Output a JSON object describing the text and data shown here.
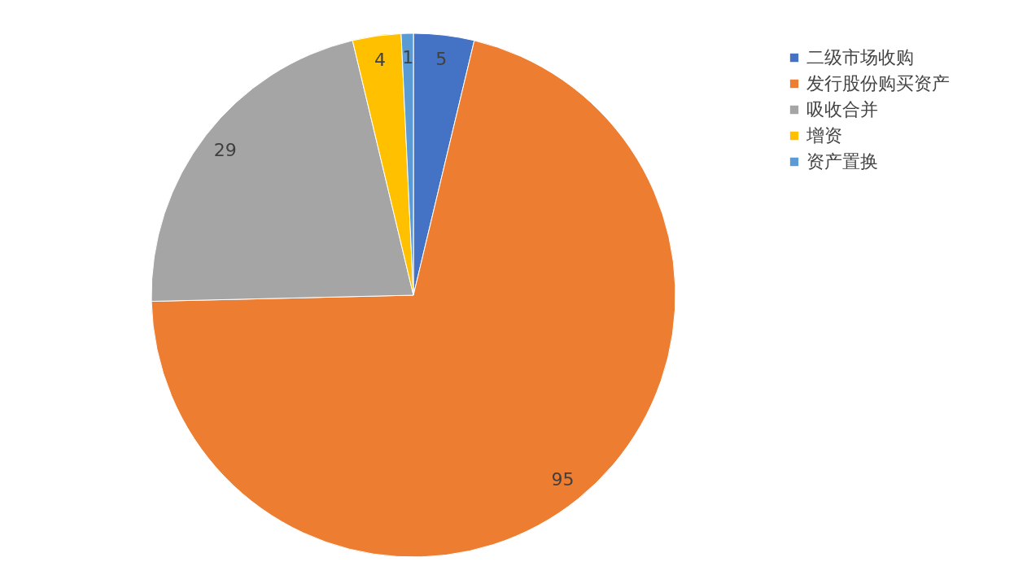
{
  "chart_data": {
    "type": "pie",
    "categories": [
      "二级市场收购",
      "发行股份购买资产",
      "吸收合并",
      "增资",
      "资产置换"
    ],
    "values": [
      5,
      95,
      29,
      4,
      1
    ],
    "colors": [
      "#4472c4",
      "#ed7d31",
      "#a5a5a5",
      "#ffc000",
      "#5b9bd5"
    ],
    "data_labels": true,
    "legend": "top right"
  }
}
